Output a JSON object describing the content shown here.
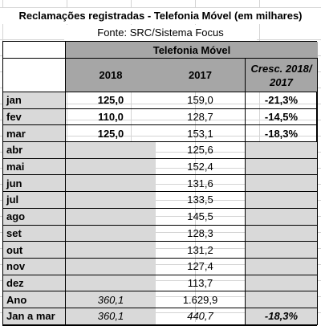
{
  "title": "Reclamações registradas - Telefonia Móvel (em milhares)",
  "source": "Fonte: SRC/Sistema Focus",
  "table": {
    "group_header": "Telefonia Móvel",
    "columns": [
      "2018",
      "2017",
      "Cresc. 2018/ 2017"
    ],
    "rows": [
      {
        "label": "jan",
        "y2018": "125,0",
        "y2017": "159,0",
        "growth": "-21,3%"
      },
      {
        "label": "fev",
        "y2018": "110,0",
        "y2017": "128,7",
        "growth": "-14,5%"
      },
      {
        "label": "mar",
        "y2018": "125,0",
        "y2017": "153,1",
        "growth": "-18,3%"
      },
      {
        "label": "abr",
        "y2018": "",
        "y2017": "125,6",
        "growth": ""
      },
      {
        "label": "mai",
        "y2018": "",
        "y2017": "152,4",
        "growth": ""
      },
      {
        "label": "jun",
        "y2018": "",
        "y2017": "131,6",
        "growth": ""
      },
      {
        "label": "jul",
        "y2018": "",
        "y2017": "133,5",
        "growth": ""
      },
      {
        "label": "ago",
        "y2018": "",
        "y2017": "145,5",
        "growth": ""
      },
      {
        "label": "set",
        "y2018": "",
        "y2017": "128,3",
        "growth": ""
      },
      {
        "label": "out",
        "y2018": "",
        "y2017": "131,2",
        "growth": ""
      },
      {
        "label": "nov",
        "y2018": "",
        "y2017": "127,4",
        "growth": ""
      },
      {
        "label": "dez",
        "y2018": "",
        "y2017": "113,7",
        "growth": ""
      },
      {
        "label": "Ano",
        "y2018": "360,1",
        "y2017": "1.629,9",
        "growth": ""
      },
      {
        "label": "Jan a mar",
        "y2018": "360,1",
        "y2017": "440,7",
        "growth": "-18,3%"
      }
    ]
  }
}
